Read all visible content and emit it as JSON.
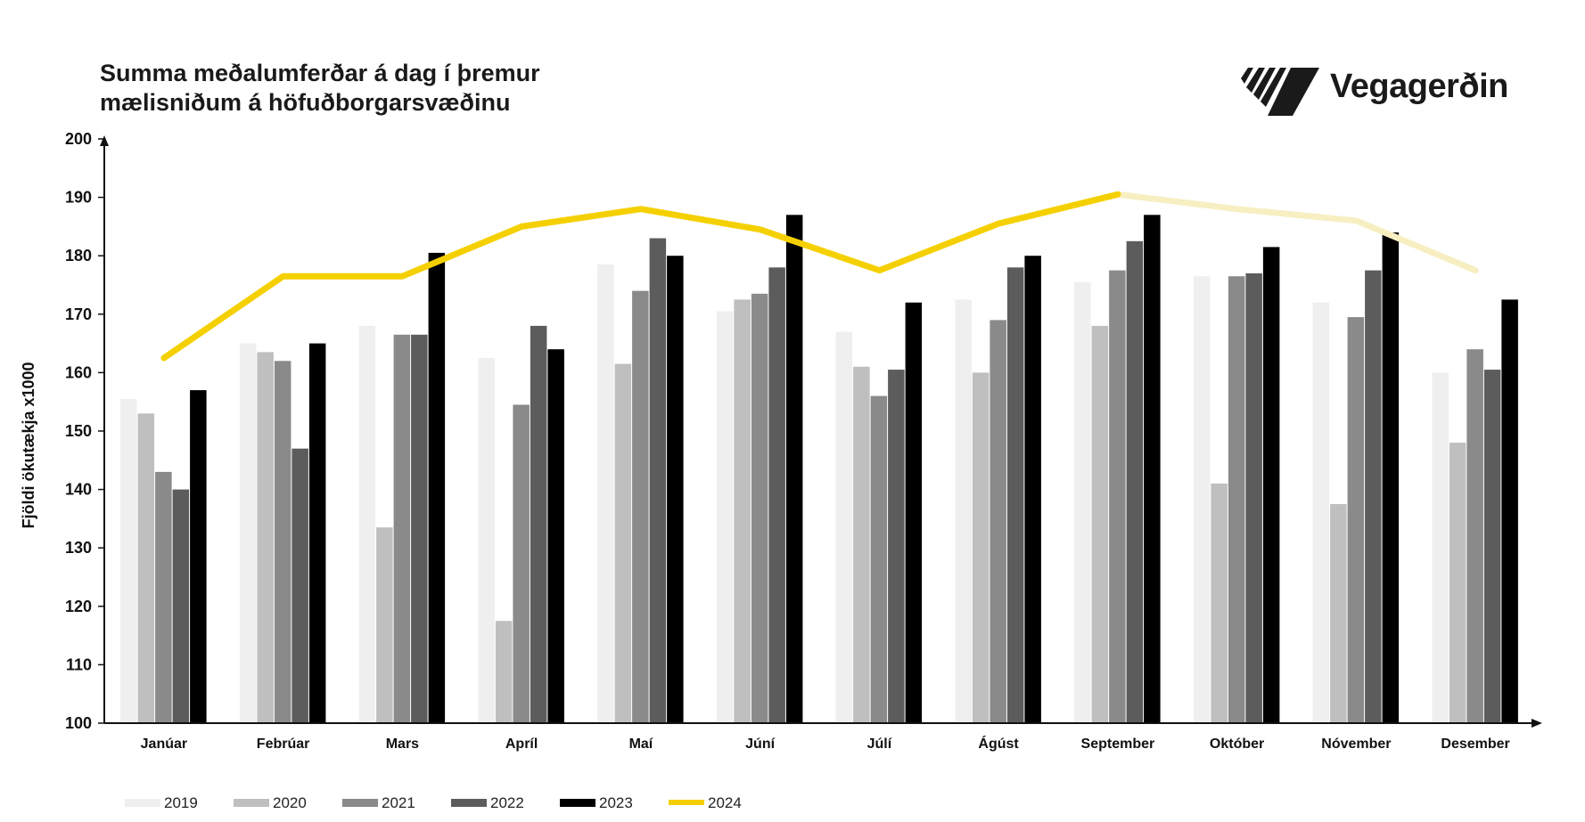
{
  "header": {
    "title_line1": "Summa meðalumferðar á dag í þremur",
    "title_line2": "mælisniðum á höfuðborgarsvæðinu"
  },
  "logo": {
    "name": "Vegagerðin",
    "icon": "striped-road-logo-icon"
  },
  "chart_data": {
    "type": "bar",
    "title": "Summa meðalumferðar á dag í þremur mælisniðum á höfuðborgarsvæðinu",
    "xlabel": "",
    "ylabel": "Fjöldi ökutækja x1000",
    "ylim": [
      100,
      200
    ],
    "yticks": [
      100,
      110,
      120,
      130,
      140,
      150,
      160,
      170,
      180,
      190,
      200
    ],
    "grid": false,
    "legend_position": "bottom-left",
    "categories": [
      "Janúar",
      "Febrúar",
      "Mars",
      "Apríl",
      "Maí",
      "Júní",
      "Júlí",
      "Ágúst",
      "September",
      "Október",
      "Nóvember",
      "Desember"
    ],
    "series": [
      {
        "name": "2019",
        "type": "bar",
        "color": "#efefef",
        "values": [
          155.5,
          165,
          168,
          162.5,
          178.5,
          170.5,
          167,
          172.5,
          175.5,
          176.5,
          172,
          160
        ]
      },
      {
        "name": "2020",
        "type": "bar",
        "color": "#bfbfbf",
        "values": [
          153,
          163.5,
          133.5,
          117.5,
          161.5,
          172.5,
          161,
          160,
          168,
          141,
          137.5,
          148
        ]
      },
      {
        "name": "2021",
        "type": "bar",
        "color": "#8a8a8a",
        "values": [
          143,
          162,
          166.5,
          154.5,
          174,
          173.5,
          156,
          169,
          177.5,
          176.5,
          169.5,
          164
        ]
      },
      {
        "name": "2022",
        "type": "bar",
        "color": "#5c5c5c",
        "values": [
          140,
          147,
          166.5,
          168,
          183,
          178,
          160.5,
          178,
          182.5,
          177,
          177.5,
          160.5
        ]
      },
      {
        "name": "2023",
        "type": "bar",
        "color": "#000000",
        "values": [
          157,
          165,
          180.5,
          164,
          180,
          187,
          172,
          180,
          187,
          181.5,
          184,
          172.5
        ]
      },
      {
        "name": "2024",
        "type": "line",
        "color": "#f5d000",
        "color_partial": "#f7efc2",
        "values": [
          162.5,
          176.5,
          176.5,
          185,
          188,
          184.5,
          177.5,
          185.5,
          190.5,
          188,
          186,
          177.5
        ],
        "partial_from_index": 8
      }
    ]
  }
}
